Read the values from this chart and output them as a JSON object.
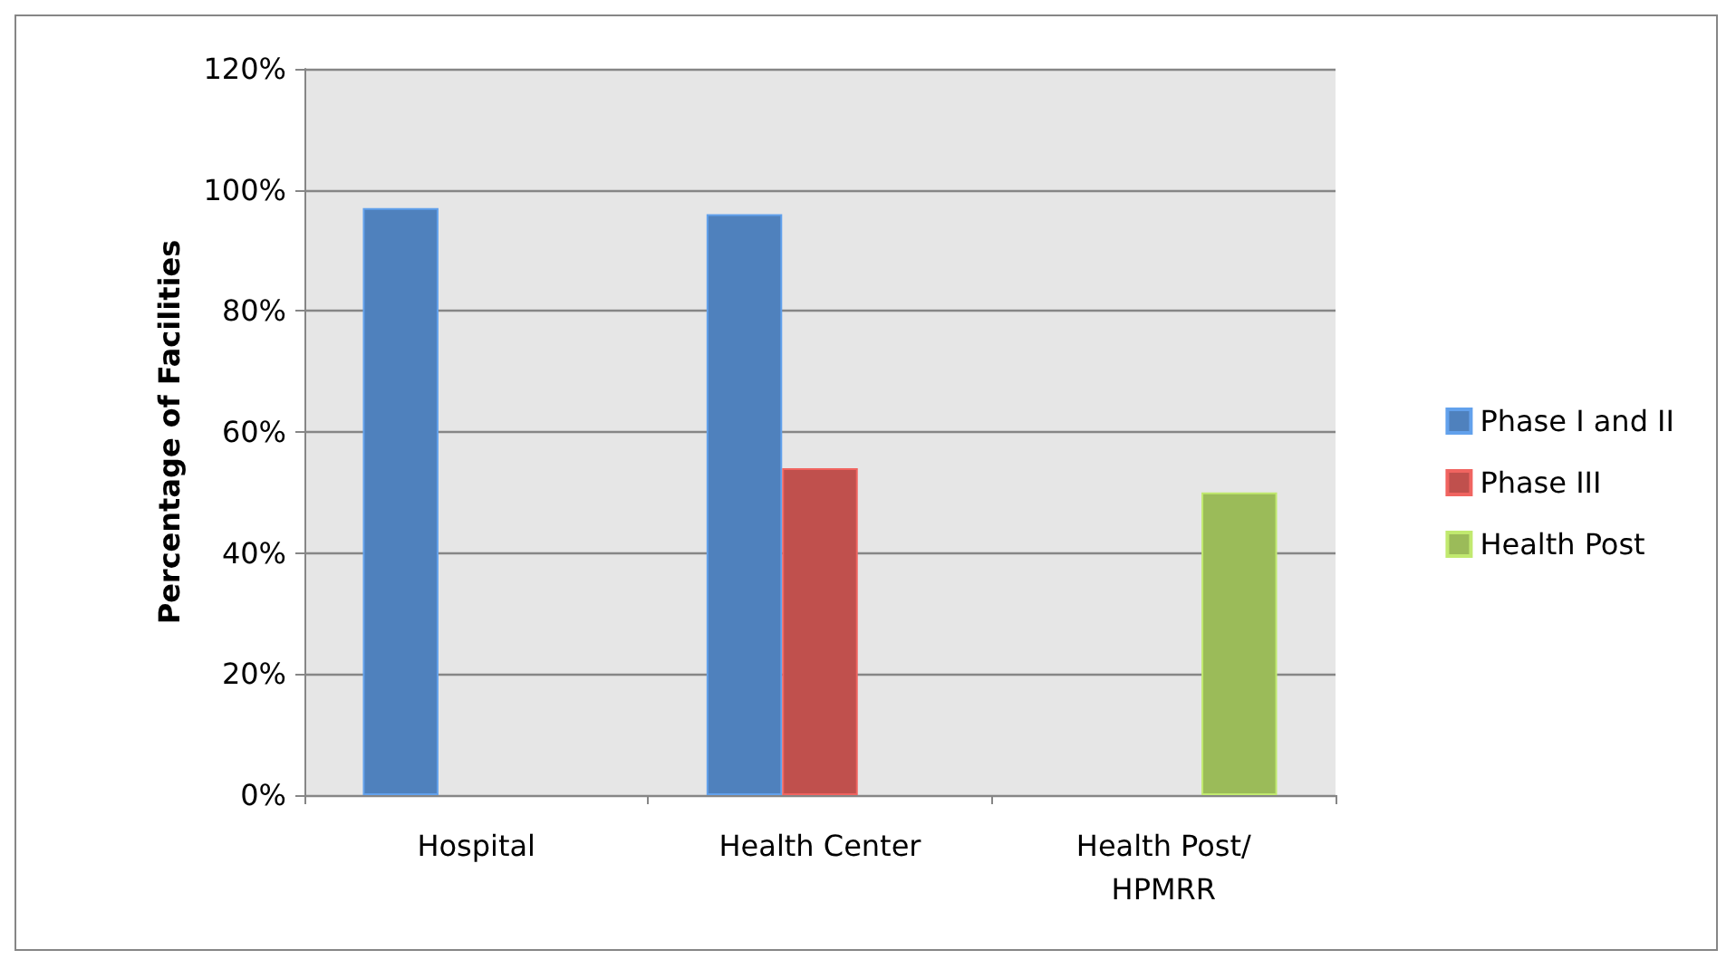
{
  "chart_data": {
    "type": "bar",
    "ylabel": "Percentage of Facilities",
    "categories": [
      "Hospital",
      "Health Center",
      "Health Post/HPMRR"
    ],
    "series": [
      {
        "name": "Phase I and II",
        "color": "#4f81bd",
        "values": [
          97,
          96,
          null
        ]
      },
      {
        "name": "Phase III",
        "color": "#c0504d",
        "values": [
          null,
          54,
          null
        ]
      },
      {
        "name": "Health Post",
        "color": "#9bbb59",
        "values": [
          null,
          null,
          50
        ]
      }
    ],
    "ylim": [
      0,
      120
    ],
    "yticks": [
      {
        "value": 0,
        "label": "0%"
      },
      {
        "value": 20,
        "label": "20%"
      },
      {
        "value": 40,
        "label": "40%"
      },
      {
        "value": 60,
        "label": "60%"
      },
      {
        "value": 80,
        "label": "80%"
      },
      {
        "value": 100,
        "label": "100%"
      },
      {
        "value": 120,
        "label": "120%"
      }
    ],
    "grid": "y",
    "legend": "right"
  }
}
